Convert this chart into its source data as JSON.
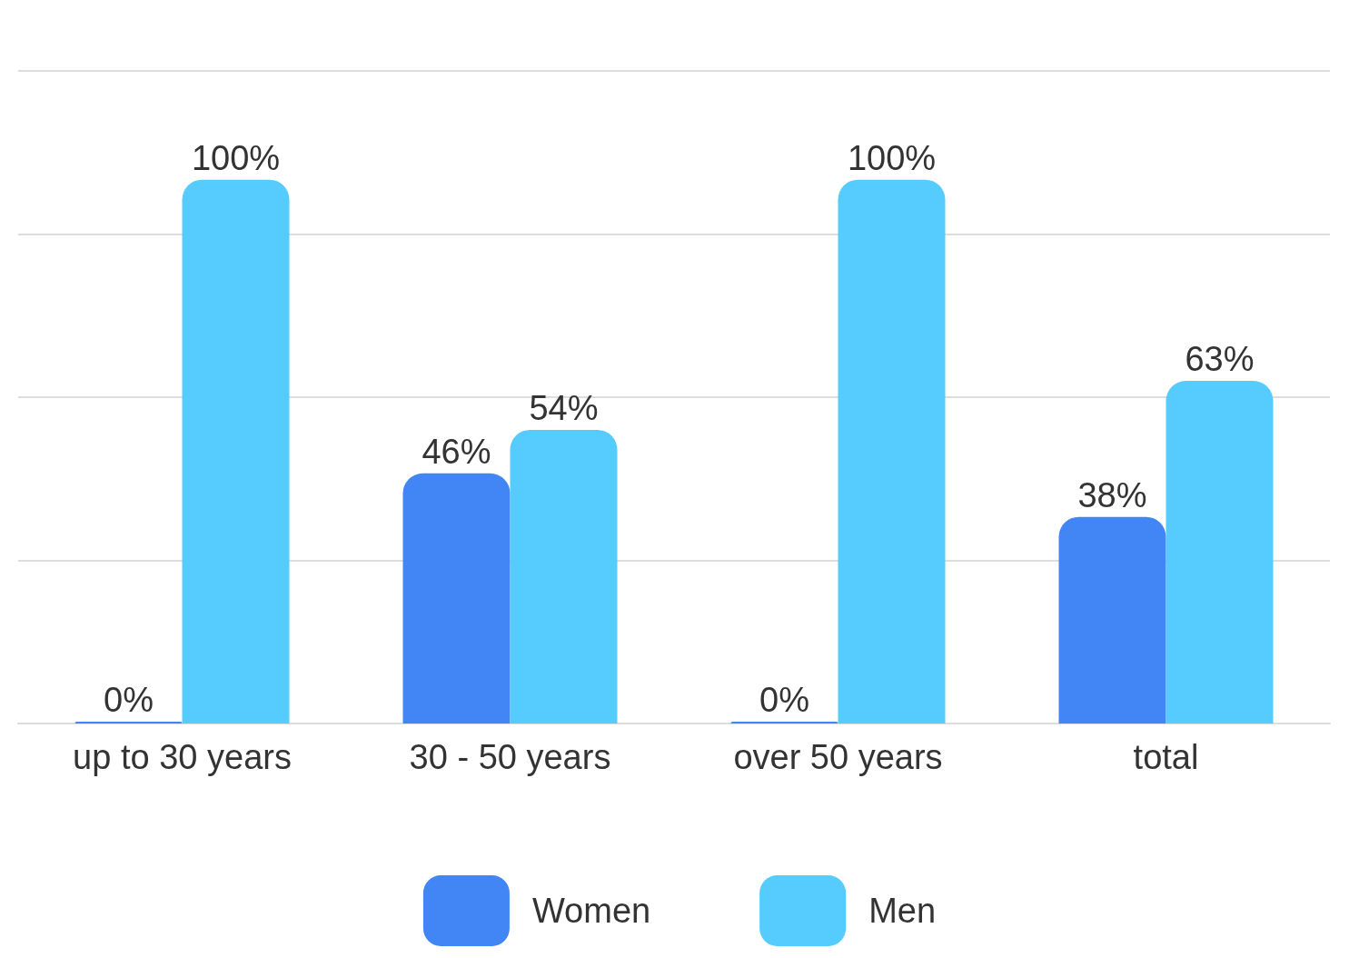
{
  "chart_data": {
    "type": "bar",
    "categories": [
      "up to 30 years",
      "30 - 50 years",
      "over 50 years",
      "total"
    ],
    "series": [
      {
        "name": "Women",
        "color": "#4285f4",
        "values": [
          0,
          46,
          0,
          38
        ],
        "value_labels": [
          "0%",
          "46%",
          "0%",
          "38%"
        ]
      },
      {
        "name": "Men",
        "color": "#56cbfe",
        "values": [
          100,
          54,
          100,
          63
        ],
        "value_labels": [
          "100%",
          "54%",
          "100%",
          "63%"
        ]
      }
    ],
    "tick_labels": "x",
    "grid": "y",
    "legend": "bottom"
  }
}
